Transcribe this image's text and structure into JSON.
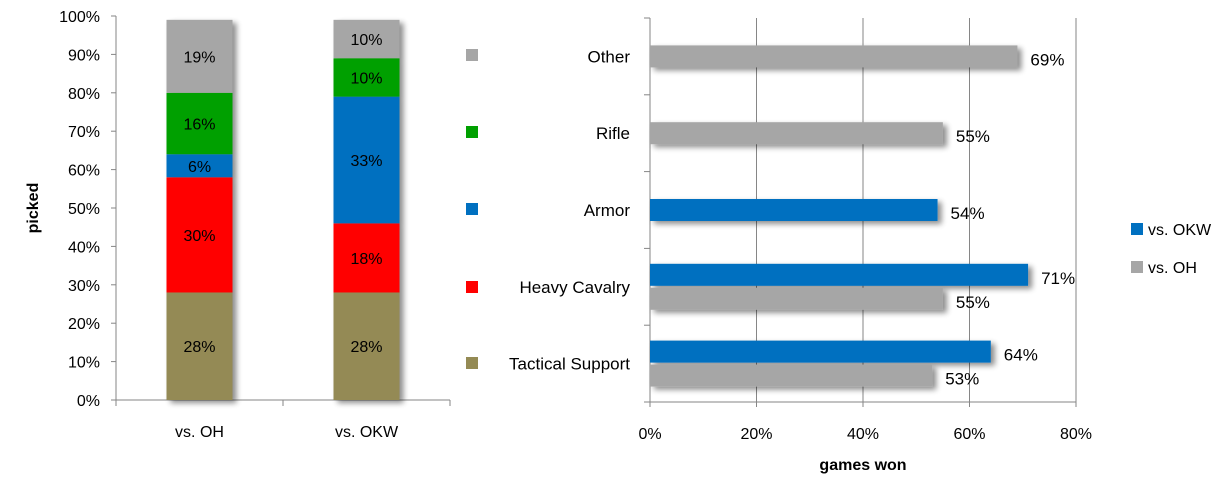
{
  "chart_data": [
    {
      "type": "bar",
      "stacked": true,
      "orientation": "vertical",
      "ylabel": "picked",
      "xlabel": "",
      "ylim": [
        0,
        100
      ],
      "y_ticks": [
        "0%",
        "10%",
        "20%",
        "30%",
        "40%",
        "50%",
        "60%",
        "70%",
        "80%",
        "90%",
        "100%"
      ],
      "categories": [
        "vs. OH",
        "vs. OKW"
      ],
      "series": [
        {
          "name": "Tactical Support",
          "color": "#948A54",
          "values": [
            28,
            28
          ],
          "labels": [
            "28%",
            "28%"
          ]
        },
        {
          "name": "Heavy Cavalry",
          "color": "#FF0000",
          "values": [
            30,
            18
          ],
          "labels": [
            "30%",
            "18%"
          ]
        },
        {
          "name": "Armor",
          "color": "#0070C0",
          "values": [
            6,
            33
          ],
          "labels": [
            "6%",
            "33%"
          ]
        },
        {
          "name": "Rifle",
          "color": "#00A000",
          "values": [
            16,
            10
          ],
          "labels": [
            "16%",
            "10%"
          ]
        },
        {
          "name": "Other",
          "color": "#A6A6A6",
          "values": [
            19,
            10
          ],
          "labels": [
            "19%",
            "10%"
          ]
        }
      ],
      "legend_position": "right",
      "grid": false
    },
    {
      "type": "bar",
      "orientation": "horizontal",
      "xlabel": "games won",
      "ylabel": "",
      "xlim": [
        0,
        80
      ],
      "x_ticks": [
        "0%",
        "20%",
        "40%",
        "60%",
        "80%"
      ],
      "categories": [
        "Tactical Support",
        "Heavy Cavalry",
        "Armor",
        "Rifle",
        "Other"
      ],
      "series": [
        {
          "name": "vs. OKW",
          "color": "#0070C0",
          "values": [
            64,
            71,
            54,
            null,
            null
          ],
          "labels": [
            "64%",
            "71%",
            "54%",
            "",
            ""
          ]
        },
        {
          "name": "vs. OH",
          "color": "#A6A6A6",
          "values": [
            53,
            55,
            null,
            55,
            69
          ],
          "labels": [
            "53%",
            "55%",
            "",
            "55%",
            "69%"
          ]
        }
      ],
      "legend_position": "right",
      "grid": true
    }
  ]
}
